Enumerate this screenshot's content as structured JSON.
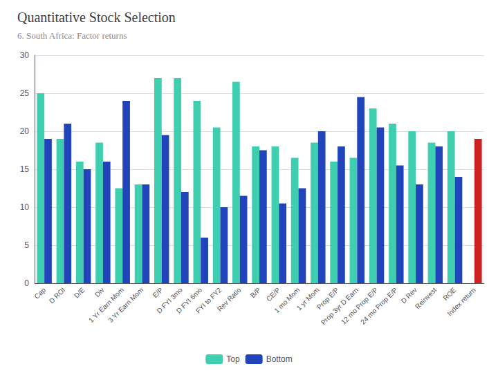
{
  "chart_data": {
    "type": "bar",
    "title": "Quantitative Stock Selection",
    "subtitle": "6. South Africa: Factor returns",
    "categories": [
      "Cap",
      "D ROI",
      "D/E",
      "Div",
      "1 Yr Earn Mom",
      "3 Yr Earn Mom",
      "E/P",
      "D FYI 3mo",
      "D FYI 6mo",
      "FYI to FY2",
      "Rev Ratio",
      "B/P",
      "CE/P",
      "1 mo Mom",
      "1 yr Mom",
      "Prop E/P",
      "Prop 3yr D Earn",
      "12 mo Prop E/P",
      "24 mo Prop E/P",
      "D Rev",
      "Reinvest",
      "ROE",
      "Index return"
    ],
    "series": [
      {
        "name": "Top",
        "color": "#3dcfaf",
        "values": [
          25.0,
          19.0,
          16.0,
          18.5,
          12.5,
          13.0,
          27.0,
          27.0,
          24.0,
          20.5,
          26.5,
          18.0,
          18.0,
          16.5,
          18.5,
          16.0,
          16.5,
          23.0,
          21.0,
          20.0,
          18.5,
          20.0,
          0
        ]
      },
      {
        "name": "Bottom",
        "color": "#2244bb",
        "colors": [
          "#2244bb",
          "#2244bb",
          "#2244bb",
          "#2244bb",
          "#2244bb",
          "#2244bb",
          "#2244bb",
          "#2244bb",
          "#2244bb",
          "#2244bb",
          "#2244bb",
          "#2244bb",
          "#2244bb",
          "#2244bb",
          "#2244bb",
          "#2244bb",
          "#2244bb",
          "#2244bb",
          "#2244bb",
          "#2244bb",
          "#2244bb",
          "#2244bb",
          "#cc2222"
        ],
        "values": [
          19.0,
          21.0,
          15.0,
          16.0,
          24.0,
          13.0,
          19.5,
          12.0,
          6.0,
          10.0,
          11.5,
          17.5,
          10.5,
          12.5,
          20.0,
          18.0,
          24.5,
          20.5,
          15.5,
          13.0,
          18.0,
          14.0,
          19.0
        ]
      }
    ],
    "ylim": [
      0,
      30
    ],
    "yticks": [
      0,
      5,
      10,
      15,
      20,
      25,
      30
    ],
    "grid": true,
    "legend": "bottom"
  }
}
